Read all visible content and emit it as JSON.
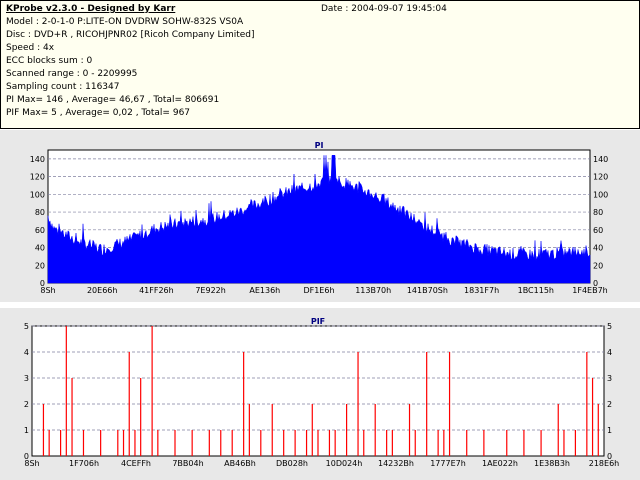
{
  "header": {
    "title": "KProbe v2.3.0 - Designed by Karr",
    "date": "Date : 2004-09-07 19:45:04",
    "lines": [
      "Model : 2-0-1-0 P:LITE-ON DVDRW SOHW-832S  VS0A",
      "Disc : DVD+R , RICOHJPNR02 [Ricoh Company Limited]",
      "Speed : 4x",
      "ECC blocks sum : 0",
      "Scanned range : 0 - 2209995",
      "Sampling count : 116347",
      "PI Max= 146 , Average= 46,67 , Total= 806691",
      "PIF Max= 5 , Average= 0,02 , Total= 967"
    ]
  },
  "chart_data": [
    {
      "type": "area",
      "title": "PI",
      "ylim": [
        0,
        150
      ],
      "yticks": [
        0,
        20,
        40,
        60,
        80,
        100,
        120,
        140
      ],
      "xticks": [
        "8Sh",
        "20E66h",
        "41FF26h",
        "7E922h",
        "AE136h",
        "DF1E6h",
        "113B70h",
        "141B70Sh",
        "1831F7h",
        "1BC115h",
        "1F4EB7h"
      ],
      "color": "#0000ff",
      "profile_x": [
        0,
        0.01,
        0.03,
        0.06,
        0.1,
        0.15,
        0.2,
        0.25,
        0.3,
        0.35,
        0.4,
        0.45,
        0.5,
        0.52,
        0.55,
        0.6,
        0.65,
        0.7,
        0.75,
        0.8,
        0.85,
        0.9,
        0.95,
        1.0
      ],
      "profile_y": [
        76,
        62,
        55,
        46,
        38,
        48,
        62,
        68,
        72,
        80,
        92,
        104,
        112,
        118,
        112,
        100,
        82,
        62,
        47,
        38,
        33,
        32,
        34,
        36
      ]
    },
    {
      "type": "bar",
      "title": "PIF",
      "ylim": [
        0,
        5
      ],
      "yticks": [
        0,
        1,
        2,
        3,
        4,
        5
      ],
      "xticks": [
        "8Sh",
        "1F706h",
        "4CEFFh",
        "7BB04h",
        "AB46Bh",
        "DB028h",
        "10D024h",
        "14232Bh",
        "1777E7h",
        "1AE022h",
        "1E38B3h",
        "218E6h"
      ],
      "color": "#ff0000",
      "points": [
        [
          0.02,
          2
        ],
        [
          0.03,
          1
        ],
        [
          0.05,
          1
        ],
        [
          0.06,
          5
        ],
        [
          0.07,
          3
        ],
        [
          0.09,
          1
        ],
        [
          0.12,
          1
        ],
        [
          0.15,
          1
        ],
        [
          0.16,
          1
        ],
        [
          0.17,
          4
        ],
        [
          0.18,
          1
        ],
        [
          0.19,
          3
        ],
        [
          0.21,
          5
        ],
        [
          0.22,
          1
        ],
        [
          0.25,
          1
        ],
        [
          0.28,
          1
        ],
        [
          0.31,
          1
        ],
        [
          0.33,
          1
        ],
        [
          0.35,
          1
        ],
        [
          0.37,
          4
        ],
        [
          0.38,
          2
        ],
        [
          0.4,
          1
        ],
        [
          0.42,
          2
        ],
        [
          0.44,
          1
        ],
        [
          0.46,
          1
        ],
        [
          0.48,
          1
        ],
        [
          0.49,
          2
        ],
        [
          0.5,
          1
        ],
        [
          0.52,
          1
        ],
        [
          0.53,
          1
        ],
        [
          0.55,
          2
        ],
        [
          0.57,
          4
        ],
        [
          0.58,
          1
        ],
        [
          0.6,
          2
        ],
        [
          0.62,
          1
        ],
        [
          0.63,
          1
        ],
        [
          0.66,
          2
        ],
        [
          0.67,
          1
        ],
        [
          0.69,
          4
        ],
        [
          0.71,
          1
        ],
        [
          0.72,
          1
        ],
        [
          0.73,
          4
        ],
        [
          0.76,
          1
        ],
        [
          0.79,
          1
        ],
        [
          0.83,
          1
        ],
        [
          0.86,
          1
        ],
        [
          0.89,
          1
        ],
        [
          0.92,
          2
        ],
        [
          0.93,
          1
        ],
        [
          0.95,
          1
        ],
        [
          0.97,
          4
        ],
        [
          0.98,
          3
        ],
        [
          0.99,
          2
        ]
      ]
    }
  ]
}
